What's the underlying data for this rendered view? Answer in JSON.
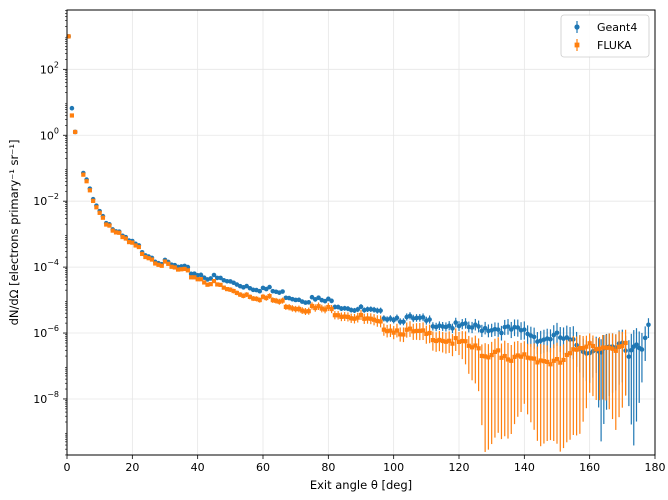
{
  "chart_data": {
    "type": "scatter",
    "title": "",
    "xlabel": "Exit angle θ [deg]",
    "ylabel": "dN/dΩ [electrons primary⁻¹ sr⁻¹]",
    "xscale": "linear",
    "yscale": "log",
    "xlim": [
      0,
      180
    ],
    "ylim_exponent": [
      -9.7,
      3.8
    ],
    "xticks": [
      "0",
      "20",
      "40",
      "60",
      "80",
      "100",
      "120",
      "140",
      "160",
      "180"
    ],
    "yticks": [
      {
        "base": "10",
        "exp": "−8",
        "value": -8
      },
      {
        "base": "10",
        "exp": "−6",
        "value": -6
      },
      {
        "base": "10",
        "exp": "−4",
        "value": -4
      },
      {
        "base": "10",
        "exp": "−2",
        "value": -2
      },
      {
        "base": "10",
        "exp": "0",
        "value": 0
      },
      {
        "base": "10",
        "exp": "2",
        "value": 2
      }
    ],
    "grid": true,
    "legend_position": "top-right",
    "series": [
      {
        "name": "Geant4",
        "color": "#1f77b4",
        "marker": "circle",
        "comment": "points given as [theta_deg, log10(y), err_up_dex, err_down_dex]",
        "points": [
          [
            0.5,
            3.0,
            0,
            0
          ],
          [
            1.5,
            0.82,
            0,
            0
          ],
          [
            2.5,
            0.1,
            0,
            0
          ],
          [
            5,
            -1.2,
            0,
            0
          ],
          [
            10,
            -2.3,
            0,
            0
          ],
          [
            15,
            -2.97,
            0,
            0
          ],
          [
            20,
            -3.3,
            0,
            0
          ],
          [
            30,
            -3.9,
            0,
            0
          ],
          [
            40,
            -4.2,
            0,
            0
          ],
          [
            50,
            -4.47,
            0.05,
            0.05
          ],
          [
            60,
            -4.65,
            0.05,
            0.05
          ],
          [
            70,
            -4.92,
            0.06,
            0.06
          ],
          [
            80,
            -5.05,
            0.07,
            0.07
          ],
          [
            90,
            -5.3,
            0.08,
            0.08
          ],
          [
            100,
            -5.52,
            0.1,
            0.1
          ],
          [
            110,
            -5.65,
            0.12,
            0.12
          ],
          [
            120,
            -5.82,
            0.15,
            0.15
          ],
          [
            130,
            -5.85,
            0.2,
            0.2
          ],
          [
            140,
            -5.95,
            0.25,
            0.3
          ],
          [
            145,
            -6.2,
            0.3,
            0.4
          ],
          [
            150,
            -6.1,
            0.3,
            0.4
          ],
          [
            155,
            -6.3,
            0.4,
            0.6
          ],
          [
            160,
            -6.6,
            0.4,
            0.9
          ],
          [
            162,
            -6.4,
            0.4,
            0.7
          ],
          [
            163.5,
            -6.6,
            0.4,
            2.7
          ],
          [
            166,
            -6.5,
            0.4,
            1.5
          ],
          [
            168,
            -6.5,
            0.4,
            1.3
          ],
          [
            170,
            -6.3,
            0.4,
            1.2
          ],
          [
            172,
            -6.7,
            0.5,
            1.5
          ],
          [
            173.5,
            -6.3,
            0.5,
            3.0
          ],
          [
            176,
            -6.4,
            0.5,
            1.0
          ],
          [
            178,
            -5.75,
            0.2,
            0.4
          ]
        ]
      },
      {
        "name": "FLUKA",
        "color": "#ff7f0e",
        "marker": "square",
        "comment": "points given as [theta_deg, log10(y), err_up_dex, err_down_dex]",
        "points": [
          [
            0.5,
            3.0,
            0,
            0
          ],
          [
            1.5,
            0.6,
            0,
            0
          ],
          [
            2.5,
            0.1,
            0,
            0
          ],
          [
            5,
            -1.25,
            0,
            0
          ],
          [
            10,
            -2.35,
            0,
            0
          ],
          [
            15,
            -3.0,
            0,
            0
          ],
          [
            20,
            -3.35,
            0,
            0
          ],
          [
            30,
            -3.95,
            0,
            0
          ],
          [
            40,
            -4.32,
            0,
            0
          ],
          [
            50,
            -4.72,
            0.07,
            0.07
          ],
          [
            60,
            -4.92,
            0.08,
            0.08
          ],
          [
            70,
            -5.2,
            0.1,
            0.1
          ],
          [
            80,
            -5.3,
            0.12,
            0.12
          ],
          [
            90,
            -5.55,
            0.15,
            0.15
          ],
          [
            100,
            -5.9,
            0.2,
            0.2
          ],
          [
            110,
            -6.05,
            0.25,
            0.3
          ],
          [
            120,
            -6.3,
            0.3,
            0.4
          ],
          [
            126,
            -6.5,
            0.3,
            1.3
          ],
          [
            128,
            -6.7,
            0.4,
            2.9
          ],
          [
            132,
            -6.5,
            0.4,
            2.5
          ],
          [
            135,
            -6.9,
            0.5,
            2.4
          ],
          [
            140,
            -6.7,
            0.4,
            1.5
          ],
          [
            145,
            -6.8,
            0.5,
            2.6
          ],
          [
            148,
            -6.9,
            0.5,
            2.3
          ],
          [
            151,
            -6.9,
            0.5,
            2.7
          ],
          [
            155,
            -6.6,
            0.4,
            2.6
          ],
          [
            157,
            -6.4,
            0.4,
            2.6
          ],
          [
            160,
            -6.3,
            0.3,
            1.5
          ],
          [
            165,
            -6.5,
            0.4,
            1.6
          ],
          [
            168,
            -6.6,
            0.5,
            2.4
          ],
          [
            171,
            -6.3,
            0.4,
            1.6
          ]
        ]
      }
    ]
  }
}
